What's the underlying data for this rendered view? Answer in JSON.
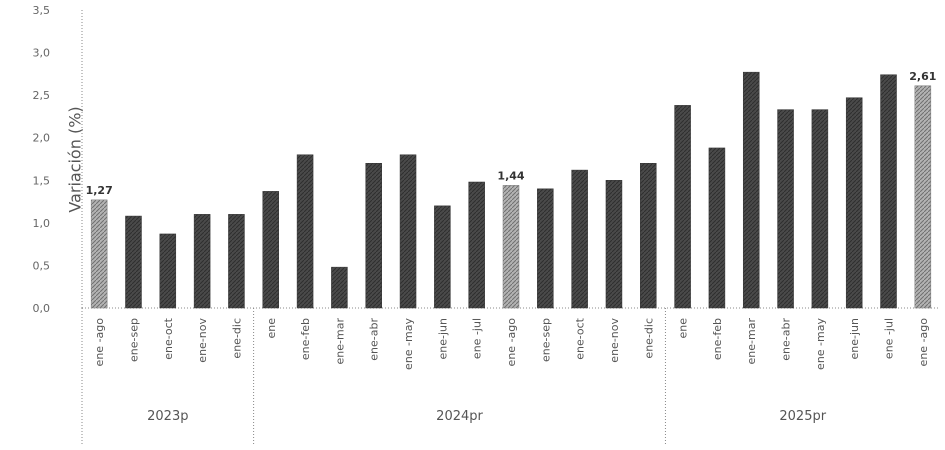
{
  "chart_data": {
    "type": "bar",
    "ylabel": "Variación (%)",
    "ylim": [
      0,
      3.5
    ],
    "yticks": [
      "0,0",
      "0,5",
      "1,0",
      "1,5",
      "2,0",
      "2,5",
      "3,0",
      "3,5"
    ],
    "grid": false,
    "categories": [
      "ene -ago",
      "ene-sep",
      "ene-oct",
      "ene-nov",
      "ene-dic",
      "ene",
      "ene-feb",
      "ene-mar",
      "ene-abr",
      "ene -may",
      "ene-jun",
      "ene -jul",
      "ene -ago",
      "ene-sep",
      "ene-oct",
      "ene-nov",
      "ene-dic",
      "ene",
      "ene-feb",
      "ene-mar",
      "ene-abr",
      "ene -may",
      "ene-jun",
      "ene -jul",
      "ene -ago"
    ],
    "values": [
      1.27,
      1.08,
      0.87,
      1.1,
      1.1,
      1.37,
      1.8,
      0.48,
      1.7,
      1.8,
      1.2,
      1.48,
      1.44,
      1.4,
      1.62,
      1.5,
      1.7,
      2.38,
      1.88,
      2.77,
      2.33,
      2.33,
      2.47,
      2.74,
      2.61
    ],
    "highlighted": [
      0,
      12,
      24
    ],
    "data_labels": [
      {
        "index": 0,
        "text": "1,27"
      },
      {
        "index": 12,
        "text": "1,44"
      },
      {
        "index": 24,
        "text": "2,61"
      }
    ],
    "groups": [
      {
        "label": "2023p",
        "count": 5
      },
      {
        "label": "2024pr",
        "count": 12
      },
      {
        "label": "2025pr",
        "count": 8
      }
    ],
    "colors": {
      "bar_dark": "#4a4a4a",
      "bar_light": "#9a9a9a"
    }
  }
}
